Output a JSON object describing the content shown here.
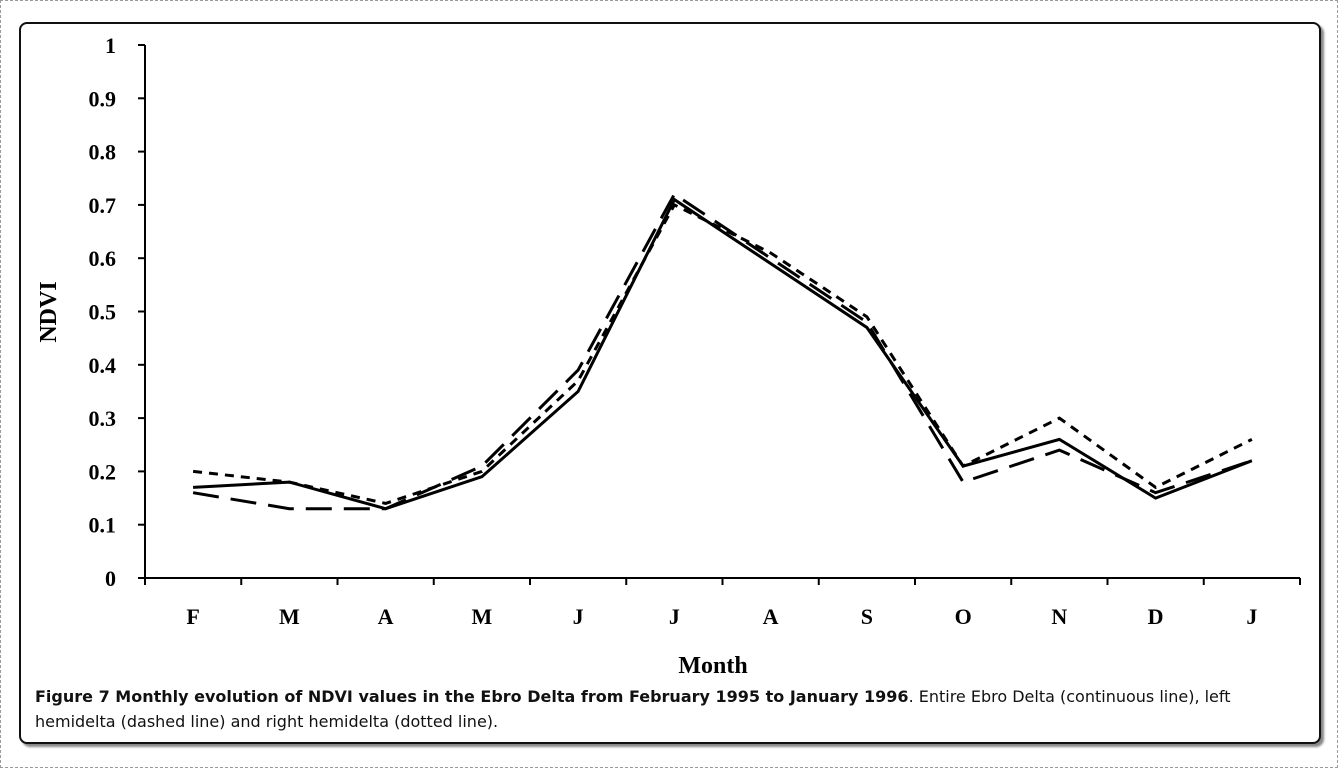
{
  "chart_data": {
    "type": "line",
    "title": "",
    "xlabel": "Month",
    "ylabel": "NDVI",
    "categories": [
      "F",
      "M",
      "A",
      "M",
      "J",
      "J",
      "A",
      "S",
      "O",
      "N",
      "D",
      "J"
    ],
    "ylim": [
      0,
      1
    ],
    "yticks": [
      "0",
      "0.1",
      "0.2",
      "0.3",
      "0.4",
      "0.5",
      "0.6",
      "0.7",
      "0.8",
      "0.9",
      "1"
    ],
    "grid": false,
    "legend": "none",
    "series": [
      {
        "style": "solid",
        "color": "#000000",
        "values": [
          0.17,
          0.18,
          0.13,
          0.19,
          0.35,
          0.71,
          0.59,
          0.47,
          0.21,
          0.26,
          0.15,
          0.22
        ]
      },
      {
        "style": "dashed",
        "color": "#000000",
        "values": [
          0.16,
          0.13,
          0.13,
          0.21,
          0.39,
          0.72,
          0.6,
          0.48,
          0.18,
          0.24,
          0.16,
          0.22
        ]
      },
      {
        "style": "dotted",
        "color": "#000000",
        "values": [
          0.2,
          0.18,
          0.14,
          0.2,
          0.37,
          0.7,
          0.61,
          0.49,
          0.21,
          0.3,
          0.17,
          0.26
        ]
      }
    ]
  },
  "caption": {
    "bold": "Figure 7 Monthly evolution of NDVI values in the Ebro Delta from February 1995 to January 1996",
    "rest": ". Entire Ebro Delta (continuous line), left hemidelta (dashed line) and right hemidelta (dotted line)."
  }
}
